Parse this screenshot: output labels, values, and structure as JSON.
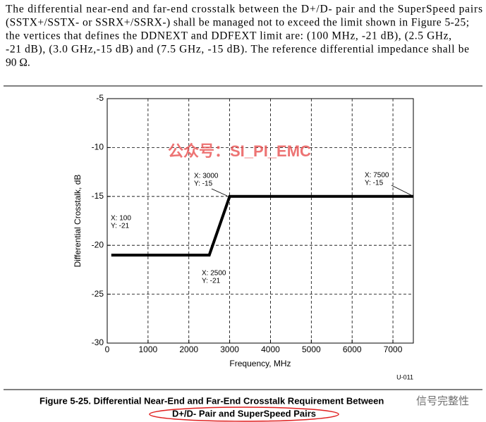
{
  "paragraph_lines": [
    "The differential near-end and far-end crosstalk between the D+/D- pair and the SuperSpeed pairs",
    "(SSTX+/SSTX- or SSRX+/SSRX-) shall be managed not to exceed the limit shown in Figure 5-25;",
    "the vertices that defines the DDNEXT and DDFEXT limit are: (100 MHz, -21 dB), (2.5 GHz,",
    "-21 dB), (3.0 GHz,-15 dB) and (7.5 GHz, -15 dB).  The reference differential impedance shall be",
    "90 Ω."
  ],
  "chart_data": {
    "type": "line",
    "x_label": "Frequency, MHz",
    "y_label": "Differential Crosstalk, dB",
    "x": [
      100,
      2500,
      3000,
      7500
    ],
    "series": [
      {
        "color": "#000000",
        "values": [
          -21,
          -21,
          -15,
          -15
        ]
      }
    ],
    "xlim": [
      0,
      7500
    ],
    "ylim": [
      -30,
      -5
    ],
    "xticks": [
      0,
      1000,
      2000,
      3000,
      4000,
      5000,
      6000,
      7000
    ],
    "yticks": [
      -5,
      -10,
      -15,
      -20,
      -25,
      -30
    ],
    "grid": true,
    "annotations": [
      [
        "X: 100",
        "Y: -21"
      ],
      [
        "X: 2500",
        "Y: -21"
      ],
      [
        "X: 3000",
        "Y: -15"
      ],
      [
        "X: 7500",
        "Y: -15"
      ]
    ],
    "figure_id": "U-011"
  },
  "caption_lines": [
    "Figure 5-25.  Differential Near-End and Far-End Crosstalk Requirement Between",
    "D+/D- Pair and SuperSpeed Pairs"
  ],
  "watermarks": [
    "公众号：SI_PI_EMC",
    "信号完整性"
  ]
}
